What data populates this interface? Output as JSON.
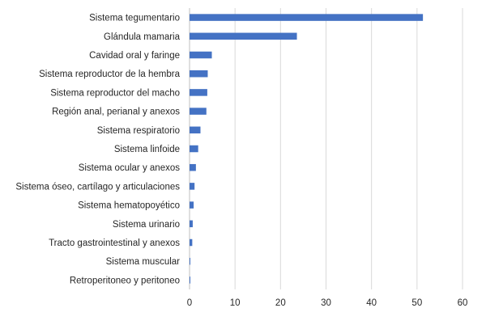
{
  "chart_data": {
    "type": "bar",
    "orientation": "horizontal",
    "categories": [
      "Sistema tegumentario",
      "Glándula mamaria",
      "Cavidad oral y faringe",
      "Sistema reproductor de la hembra",
      "Sistema reproductor del macho",
      "Región anal, perianal y anexos",
      "Sistema respiratorio",
      "Sistema linfoide",
      "Sistema ocular y anexos",
      "Sistema óseo, cartílago y articulaciones",
      "Sistema hematopoyético",
      "Sistema urinario",
      "Tracto gastrointestinal y anexos",
      "Sistema muscular",
      "Retroperitoneo y peritoneo"
    ],
    "values": [
      51.3,
      23.6,
      4.9,
      4.0,
      3.9,
      3.7,
      2.4,
      1.9,
      1.4,
      1.1,
      0.9,
      0.7,
      0.6,
      0.1,
      0.1
    ],
    "xlim": [
      0,
      60
    ],
    "xticks": [
      "0",
      "10",
      "20",
      "30",
      "40",
      "50",
      "60"
    ],
    "title": "",
    "xlabel": "",
    "ylabel": "",
    "grid": "vertical",
    "bar_color": "#4472c4"
  }
}
